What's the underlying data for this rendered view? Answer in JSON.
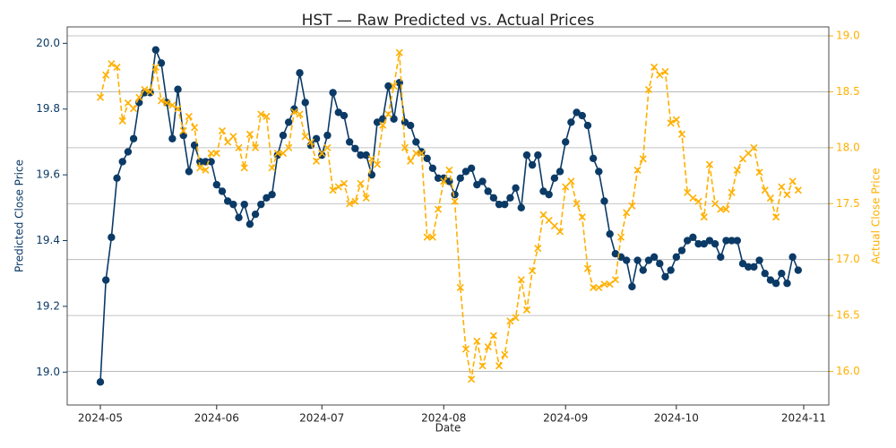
{
  "chart_data": {
    "type": "line",
    "title": "HST — Raw Predicted vs. Actual Prices",
    "xlabel": "Date",
    "ylabel": "Predicted Close Price",
    "y2label": "Actual Close Price",
    "categories": [
      "2024-05",
      null,
      null,
      null,
      null,
      null,
      null,
      null,
      null,
      null,
      null,
      null,
      null,
      null,
      null,
      null,
      null,
      null,
      null,
      null,
      null,
      "2024-06",
      null,
      null,
      null,
      null,
      null,
      null,
      null,
      null,
      null,
      null,
      null,
      null,
      null,
      null,
      null,
      null,
      null,
      null,
      "2024-07",
      null,
      null,
      null,
      null,
      null,
      null,
      null,
      null,
      null,
      null,
      null,
      null,
      null,
      null,
      null,
      null,
      null,
      null,
      null,
      null,
      null,
      "2024-08",
      null,
      null,
      null,
      null,
      null,
      null,
      null,
      null,
      null,
      null,
      null,
      null,
      null,
      null,
      null,
      null,
      null,
      null,
      null,
      null,
      null,
      "2024-09",
      null,
      null,
      null,
      null,
      null,
      null,
      null,
      null,
      null,
      null,
      null,
      null,
      null,
      null,
      null,
      null,
      null,
      null,
      null,
      "2024-10",
      null,
      null,
      null,
      null,
      null,
      null,
      null,
      null,
      null,
      null,
      null,
      null,
      null,
      null,
      null,
      null,
      null,
      null,
      null,
      null,
      null,
      null,
      "2024-11"
    ],
    "series": [
      {
        "name": "Predicted",
        "color": "#0b3a66",
        "axis": "y",
        "marker": "circle",
        "dash": false,
        "values": [
          18.97,
          19.28,
          19.41,
          19.59,
          19.64,
          19.67,
          19.71,
          19.82,
          19.85,
          19.85,
          19.98,
          19.94,
          19.82,
          19.71,
          19.86,
          19.72,
          19.61,
          19.69,
          19.64,
          19.64,
          19.64,
          19.57,
          19.55,
          19.52,
          19.51,
          19.47,
          19.51,
          19.45,
          19.48,
          19.51,
          19.53,
          19.54,
          19.66,
          19.72,
          19.76,
          19.8,
          19.91,
          19.82,
          19.69,
          19.71,
          19.66,
          19.72,
          19.85,
          19.79,
          19.78,
          19.7,
          19.68,
          19.66,
          19.66,
          19.6,
          19.76,
          19.77,
          19.87,
          19.77,
          19.88,
          19.76,
          19.75,
          19.7,
          19.67,
          19.65,
          19.62,
          19.59,
          19.59,
          19.58,
          19.54,
          19.59,
          19.61,
          19.62,
          19.57,
          19.58,
          19.55,
          19.53,
          19.51,
          19.51,
          19.53,
          19.56,
          19.5,
          19.66,
          19.63,
          19.66,
          19.55,
          19.54,
          19.59,
          19.61,
          19.7,
          19.76,
          19.79,
          19.78,
          19.75,
          19.65,
          19.61,
          19.52,
          19.42,
          19.36,
          19.35,
          19.34,
          19.26,
          19.34,
          19.31,
          19.34,
          19.35,
          19.33,
          19.29,
          19.31,
          19.35,
          19.37,
          19.4,
          19.41,
          19.39,
          19.39,
          19.4,
          19.39,
          19.35,
          19.4,
          19.4,
          19.4,
          19.33,
          19.32,
          19.32,
          19.34,
          19.3,
          19.28,
          19.27,
          19.3,
          19.27,
          19.35,
          19.31,
          null
        ]
      },
      {
        "name": "Actual",
        "color": "#ffb000",
        "axis": "y2",
        "marker": "x",
        "dash": true,
        "values": [
          18.45,
          18.65,
          18.75,
          18.72,
          18.24,
          18.4,
          18.35,
          18.45,
          18.52,
          18.5,
          18.72,
          18.42,
          18.4,
          18.38,
          18.35,
          18.15,
          18.28,
          18.18,
          17.82,
          17.8,
          17.95,
          17.95,
          18.15,
          18.05,
          18.1,
          18.0,
          17.82,
          18.12,
          18.0,
          18.3,
          18.28,
          17.82,
          17.95,
          17.95,
          18.0,
          18.32,
          18.3,
          18.1,
          18.05,
          17.88,
          17.95,
          18.0,
          17.62,
          17.65,
          17.68,
          17.5,
          17.52,
          17.68,
          17.55,
          17.9,
          17.85,
          18.2,
          18.3,
          18.55,
          18.85,
          18.0,
          17.88,
          17.95,
          17.95,
          17.2,
          17.2,
          17.45,
          17.7,
          17.8,
          17.52,
          16.75,
          16.2,
          15.93,
          16.27,
          16.05,
          16.22,
          16.32,
          16.05,
          16.15,
          16.45,
          16.48,
          16.82,
          16.55,
          16.9,
          17.1,
          17.4,
          17.35,
          17.3,
          17.25,
          17.65,
          17.7,
          17.5,
          17.38,
          16.92,
          16.75,
          16.75,
          16.78,
          16.78,
          16.82,
          17.2,
          17.42,
          17.48,
          17.8,
          17.9,
          18.52,
          18.72,
          18.65,
          18.68,
          18.22,
          18.25,
          18.12,
          17.6,
          17.55,
          17.52,
          17.38,
          17.85,
          17.5,
          17.45,
          17.45,
          17.6,
          17.8,
          17.9,
          17.95,
          18.0,
          17.78,
          17.62,
          17.55,
          17.38,
          17.65,
          17.58,
          17.7,
          17.62,
          null
        ]
      }
    ],
    "ylim": [
      18.9,
      20.05
    ],
    "yticks": [
      {
        "value": 19,
        "label": "19.0"
      },
      19.2,
      19.4,
      19.6,
      19.8,
      {
        "value": 20,
        "label": "20.0"
      }
    ],
    "y2lim": [
      15.7,
      19.08
    ],
    "y2ticks": [
      {
        "value": 16,
        "label": "16.0"
      },
      16.5,
      {
        "value": 17,
        "label": "17.0"
      },
      17.5,
      {
        "value": 18,
        "label": "18.0"
      },
      18.5,
      {
        "value": 19,
        "label": "19.0"
      }
    ],
    "grid": "y2"
  }
}
